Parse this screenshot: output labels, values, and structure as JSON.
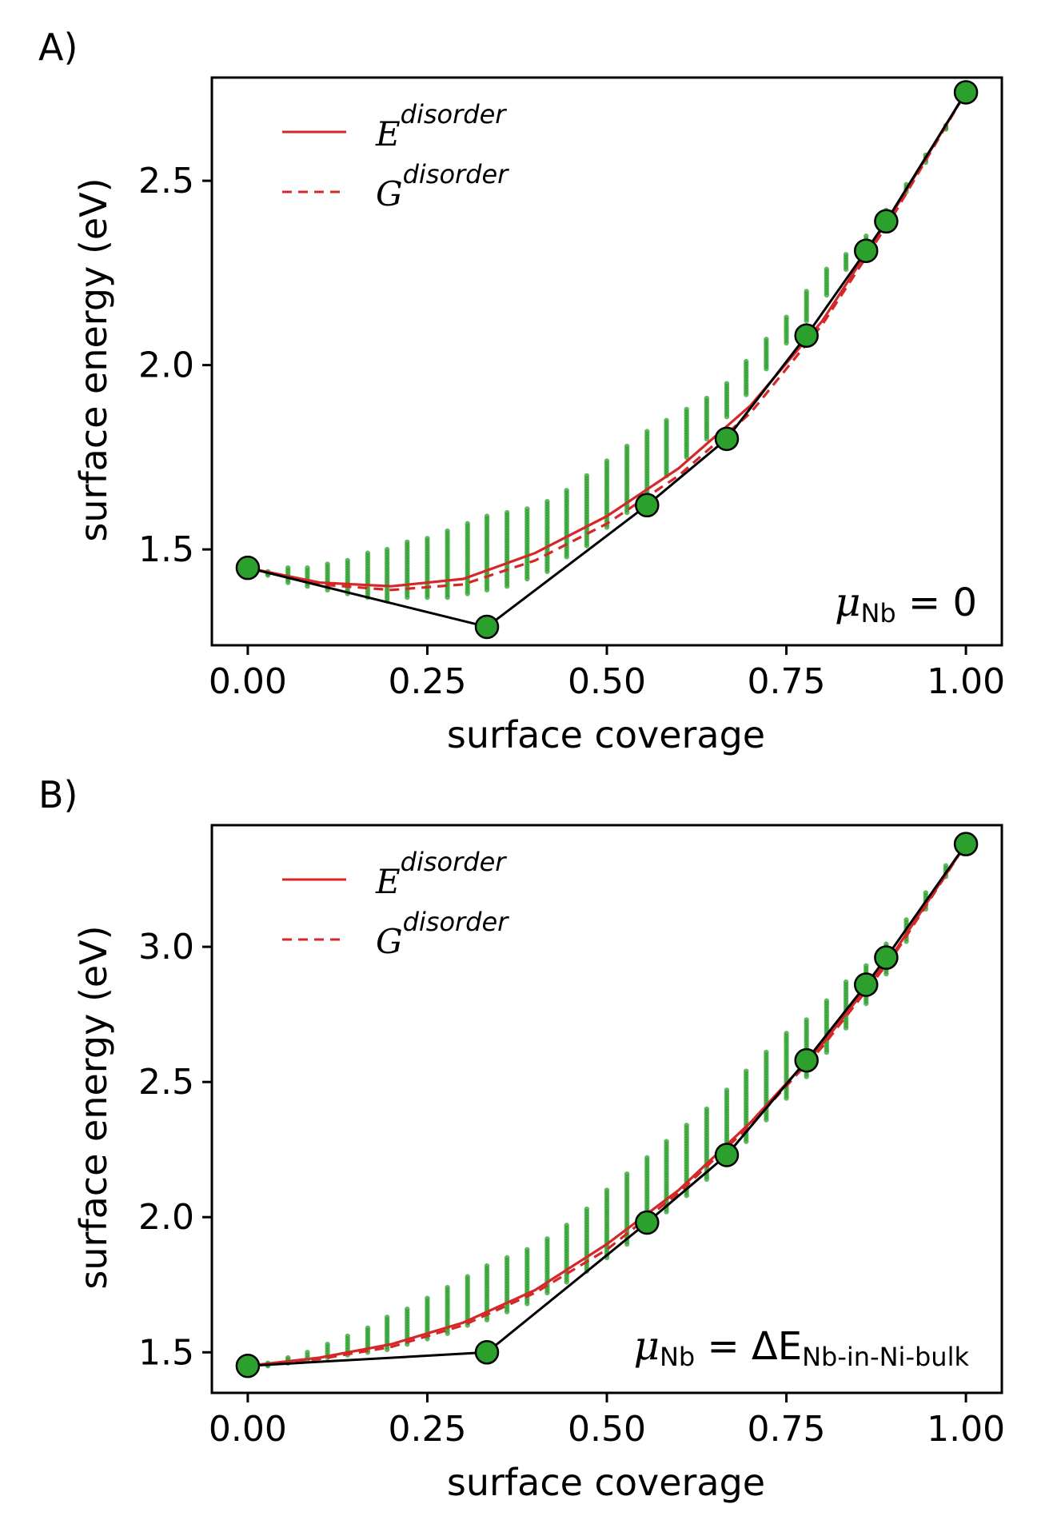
{
  "chart_data": [
    {
      "type": "scatter",
      "panel_label": "A)",
      "xlabel": "surface coverage",
      "ylabel": "surface energy (eV)",
      "xlim": [
        -0.05,
        1.05
      ],
      "ylim": [
        1.24,
        2.78
      ],
      "xticks": [
        0.0,
        0.25,
        0.5,
        0.75,
        1.0
      ],
      "xtick_labels": [
        "0.00",
        "0.25",
        "0.50",
        "0.75",
        "1.00"
      ],
      "yticks": [
        1.5,
        2.0,
        2.5
      ],
      "ytick_labels": [
        "1.5",
        "2.0",
        "2.5"
      ],
      "legend": [
        {
          "base": "E",
          "sup": "disorder",
          "style": "solid"
        },
        {
          "base": "G",
          "sup": "disorder",
          "style": "dashed"
        }
      ],
      "annotation": {
        "mu": "μ",
        "sub": "Nb",
        "rest": " = 0",
        "sub2": "",
        "location": "bottom-right"
      },
      "colors": {
        "scatter": "#2ca02c",
        "curve": "#d62728",
        "hull": "#000000"
      },
      "hull_points": {
        "x": [
          0.0,
          0.333,
          0.556,
          0.667,
          0.778,
          0.861,
          0.889,
          1.0
        ],
        "y": [
          1.45,
          1.29,
          1.62,
          1.8,
          2.08,
          2.31,
          2.39,
          2.74
        ]
      },
      "E_disorder": {
        "x": [
          0.0,
          0.1,
          0.2,
          0.3,
          0.4,
          0.5,
          0.6,
          0.7,
          0.8,
          0.9,
          1.0
        ],
        "y": [
          1.45,
          1.41,
          1.4,
          1.42,
          1.49,
          1.59,
          1.72,
          1.89,
          2.12,
          2.42,
          2.74
        ]
      },
      "G_disorder": {
        "x": [
          0.0,
          0.1,
          0.2,
          0.3,
          0.4,
          0.5,
          0.6,
          0.7,
          0.8,
          0.9,
          1.0
        ],
        "y": [
          1.45,
          1.405,
          1.39,
          1.405,
          1.47,
          1.57,
          1.7,
          1.87,
          2.11,
          2.41,
          2.74
        ]
      },
      "scatter_clusters": {
        "x": [
          0.028,
          0.056,
          0.083,
          0.111,
          0.139,
          0.167,
          0.194,
          0.222,
          0.25,
          0.278,
          0.306,
          0.333,
          0.361,
          0.389,
          0.417,
          0.444,
          0.472,
          0.5,
          0.528,
          0.556,
          0.583,
          0.611,
          0.639,
          0.667,
          0.694,
          0.722,
          0.75,
          0.778,
          0.806,
          0.833,
          0.861,
          0.889,
          0.917,
          0.944,
          0.972
        ],
        "ymin": [
          1.43,
          1.41,
          1.4,
          1.39,
          1.38,
          1.37,
          1.36,
          1.37,
          1.37,
          1.37,
          1.38,
          1.39,
          1.4,
          1.42,
          1.44,
          1.48,
          1.51,
          1.56,
          1.6,
          1.65,
          1.7,
          1.75,
          1.8,
          1.86,
          1.92,
          1.99,
          2.06,
          2.12,
          2.19,
          2.26,
          2.32,
          2.39,
          2.47,
          2.55,
          2.64
        ],
        "ymax": [
          1.44,
          1.45,
          1.45,
          1.46,
          1.47,
          1.49,
          1.5,
          1.52,
          1.53,
          1.55,
          1.57,
          1.59,
          1.6,
          1.61,
          1.63,
          1.66,
          1.7,
          1.74,
          1.78,
          1.82,
          1.85,
          1.88,
          1.91,
          1.95,
          2.01,
          2.07,
          2.13,
          2.2,
          2.26,
          2.3,
          2.35,
          2.42,
          2.49,
          2.57,
          2.65
        ]
      }
    },
    {
      "type": "scatter",
      "panel_label": "B)",
      "xlabel": "surface coverage",
      "ylabel": "surface energy (eV)",
      "xlim": [
        -0.05,
        1.05
      ],
      "ylim": [
        1.35,
        3.45
      ],
      "xticks": [
        0.0,
        0.25,
        0.5,
        0.75,
        1.0
      ],
      "xtick_labels": [
        "0.00",
        "0.25",
        "0.50",
        "0.75",
        "1.00"
      ],
      "yticks": [
        1.5,
        2.0,
        2.5,
        3.0
      ],
      "ytick_labels": [
        "1.5",
        "2.0",
        "2.5",
        "3.0"
      ],
      "legend": [
        {
          "base": "E",
          "sup": "disorder",
          "style": "solid"
        },
        {
          "base": "G",
          "sup": "disorder",
          "style": "dashed"
        }
      ],
      "annotation": {
        "mu": "μ",
        "sub": "Nb",
        "rest": " = ΔE",
        "sub2": "Nb-in-Ni-bulk",
        "location": "bottom-right"
      },
      "colors": {
        "scatter": "#2ca02c",
        "curve": "#d62728",
        "hull": "#000000"
      },
      "hull_points": {
        "x": [
          0.0,
          0.333,
          0.556,
          0.667,
          0.778,
          0.861,
          0.889,
          1.0
        ],
        "y": [
          1.45,
          1.5,
          1.98,
          2.23,
          2.58,
          2.86,
          2.96,
          3.38
        ]
      },
      "E_disorder": {
        "x": [
          0.0,
          0.1,
          0.2,
          0.3,
          0.4,
          0.5,
          0.6,
          0.7,
          0.8,
          0.9,
          1.0
        ],
        "y": [
          1.45,
          1.48,
          1.53,
          1.61,
          1.73,
          1.9,
          2.1,
          2.35,
          2.64,
          2.98,
          3.38
        ]
      },
      "G_disorder": {
        "x": [
          0.0,
          0.1,
          0.2,
          0.3,
          0.4,
          0.5,
          0.6,
          0.7,
          0.8,
          0.9,
          1.0
        ],
        "y": [
          1.45,
          1.475,
          1.52,
          1.6,
          1.72,
          1.88,
          2.09,
          2.34,
          2.63,
          2.97,
          3.38
        ]
      },
      "scatter_clusters": {
        "x": [
          0.028,
          0.056,
          0.083,
          0.111,
          0.139,
          0.167,
          0.194,
          0.222,
          0.25,
          0.278,
          0.306,
          0.333,
          0.361,
          0.389,
          0.417,
          0.444,
          0.472,
          0.5,
          0.528,
          0.556,
          0.583,
          0.611,
          0.639,
          0.667,
          0.694,
          0.722,
          0.75,
          0.778,
          0.806,
          0.833,
          0.861,
          0.889,
          0.917,
          0.944,
          0.972
        ],
        "ymin": [
          1.45,
          1.46,
          1.47,
          1.48,
          1.49,
          1.5,
          1.51,
          1.53,
          1.55,
          1.57,
          1.6,
          1.62,
          1.65,
          1.68,
          1.72,
          1.76,
          1.8,
          1.85,
          1.9,
          1.96,
          2.02,
          2.08,
          2.14,
          2.21,
          2.28,
          2.36,
          2.44,
          2.52,
          2.61,
          2.7,
          2.79,
          2.9,
          3.02,
          3.14,
          3.26
        ],
        "ymax": [
          1.46,
          1.48,
          1.5,
          1.53,
          1.56,
          1.59,
          1.63,
          1.66,
          1.7,
          1.74,
          1.78,
          1.82,
          1.85,
          1.88,
          1.92,
          1.97,
          2.03,
          2.1,
          2.16,
          2.22,
          2.28,
          2.34,
          2.4,
          2.47,
          2.54,
          2.61,
          2.68,
          2.73,
          2.8,
          2.87,
          2.93,
          3.01,
          3.1,
          3.2,
          3.3
        ]
      }
    }
  ]
}
